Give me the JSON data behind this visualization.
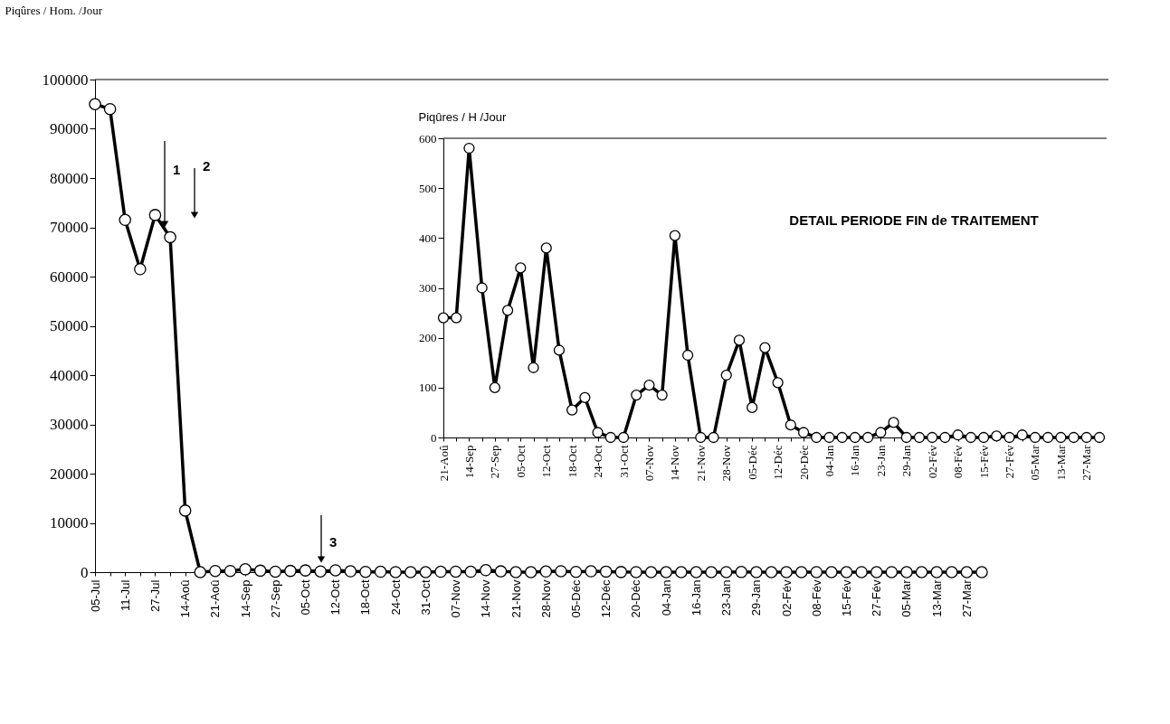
{
  "chart_data": [
    {
      "type": "line",
      "ylabel": "Piqûres / Hom. /Jour",
      "marker": "circle",
      "line_style": "solid",
      "categories": [
        "05-Jul",
        null,
        "11-Jul",
        null,
        "27-Jul",
        null,
        "14-Aoû",
        null,
        "21-Aoû",
        null,
        "14-Sep",
        null,
        "27-Sep",
        null,
        "05-Oct",
        null,
        "12-Oct",
        null,
        "18-Oct",
        null,
        "24-Oct",
        null,
        "31-Oct",
        null,
        "07-Nov",
        null,
        "14-Nov",
        null,
        "21-Nov",
        null,
        "28-Nov",
        null,
        "05-Déc",
        null,
        "12-Déc",
        null,
        "20-Déc",
        null,
        "04-Jan",
        null,
        "16-Jan",
        null,
        "23-Jan",
        null,
        "29-Jan",
        null,
        "02-Fév",
        null,
        "08-Fév",
        null,
        "15-Fév",
        null,
        "27-Fév",
        null,
        "05-Mar",
        null,
        "13-Mar",
        null,
        "27-Mar",
        null
      ],
      "series": [
        {
          "color": "#000000",
          "values": [
            95000,
            94000,
            71500,
            61500,
            72500,
            68000,
            12500,
            0,
            240,
            240,
            580,
            300,
            100,
            255,
            340,
            140,
            380,
            175,
            55,
            80,
            10,
            0,
            0,
            85,
            105,
            85,
            405,
            165,
            0,
            0,
            125,
            195,
            60,
            180,
            110,
            25,
            10,
            0,
            0,
            0,
            0,
            0,
            10,
            30,
            0,
            0,
            0,
            0,
            5,
            0,
            0,
            3,
            0,
            5,
            0,
            0,
            0,
            0,
            0,
            0
          ]
        }
      ],
      "ylim": [
        0,
        100000
      ],
      "yticks": [
        0,
        10000,
        20000,
        30000,
        40000,
        50000,
        60000,
        70000,
        80000,
        90000,
        100000
      ],
      "annotations": [
        "1",
        "2",
        "3"
      ]
    },
    {
      "type": "line",
      "ylabel": "Piqûres / H /Jour",
      "marker": "circle",
      "line_style": "solid",
      "categories": [
        "21-Aoû",
        null,
        "14-Sep",
        null,
        "27-Sep",
        null,
        "05-Oct",
        null,
        "12-Oct",
        null,
        "18-Oct",
        null,
        "24-Oct",
        null,
        "31-Oct",
        null,
        "07-Nov",
        null,
        "14-Nov",
        null,
        "21-Nov",
        null,
        "28-Nov",
        null,
        "05-Déc",
        null,
        "12-Déc",
        null,
        "20-Déc",
        null,
        "04-Jan",
        null,
        "16-Jan",
        null,
        "23-Jan",
        null,
        "29-Jan",
        null,
        "02-Fév",
        null,
        "08-Fév",
        null,
        "15-Fév",
        null,
        "27-Fév",
        null,
        "05-Mar",
        null,
        "13-Mar",
        null,
        "27-Mar",
        null
      ],
      "series": [
        {
          "color": "#000000",
          "values": [
            240,
            240,
            580,
            300,
            100,
            255,
            340,
            140,
            380,
            175,
            55,
            80,
            10,
            0,
            0,
            85,
            105,
            85,
            405,
            165,
            0,
            0,
            125,
            195,
            60,
            180,
            110,
            25,
            10,
            0,
            0,
            0,
            0,
            0,
            10,
            30,
            0,
            0,
            0,
            0,
            5,
            0,
            0,
            3,
            0,
            5,
            0,
            0,
            0,
            0,
            0,
            0
          ]
        }
      ],
      "ylim": [
        0,
        600
      ],
      "yticks": [
        0,
        100,
        200,
        300,
        400,
        500,
        600
      ],
      "annotations": [
        "DETAIL PERIODE FIN de TRAITEMENT"
      ]
    }
  ]
}
